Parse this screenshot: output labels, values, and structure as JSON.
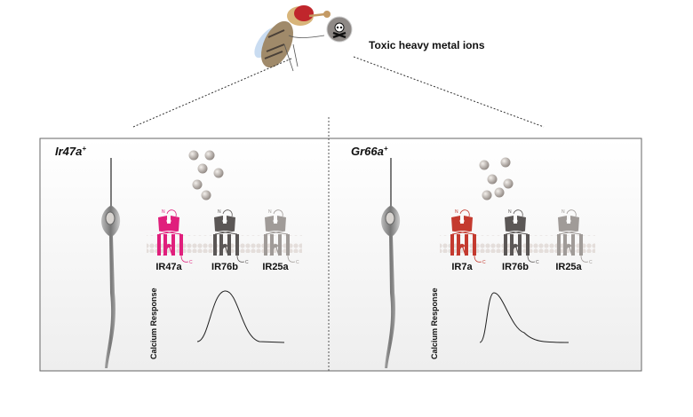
{
  "header": {
    "stimulus_label": "Toxic heavy metal ions",
    "icon": "skull-icon"
  },
  "panels": [
    {
      "title": "Ir47a",
      "superscript": "+",
      "receptors": [
        {
          "label": "IR47a",
          "color": "#e01f7c"
        },
        {
          "label": "IR76b",
          "color": "#5b5756"
        },
        {
          "label": "IR25a",
          "color": "#a09b98"
        }
      ],
      "ylabel": "Calcium Response"
    },
    {
      "title": "Gr66a",
      "superscript": "+",
      "receptors": [
        {
          "label": "IR7a",
          "color": "#c43a2f"
        },
        {
          "label": "IR76b",
          "color": "#5b5756"
        },
        {
          "label": "IR25a",
          "color": "#a09b98"
        }
      ],
      "ylabel": "Calcium Response"
    }
  ],
  "terminal_labels": {
    "n": "N",
    "c": "C"
  }
}
